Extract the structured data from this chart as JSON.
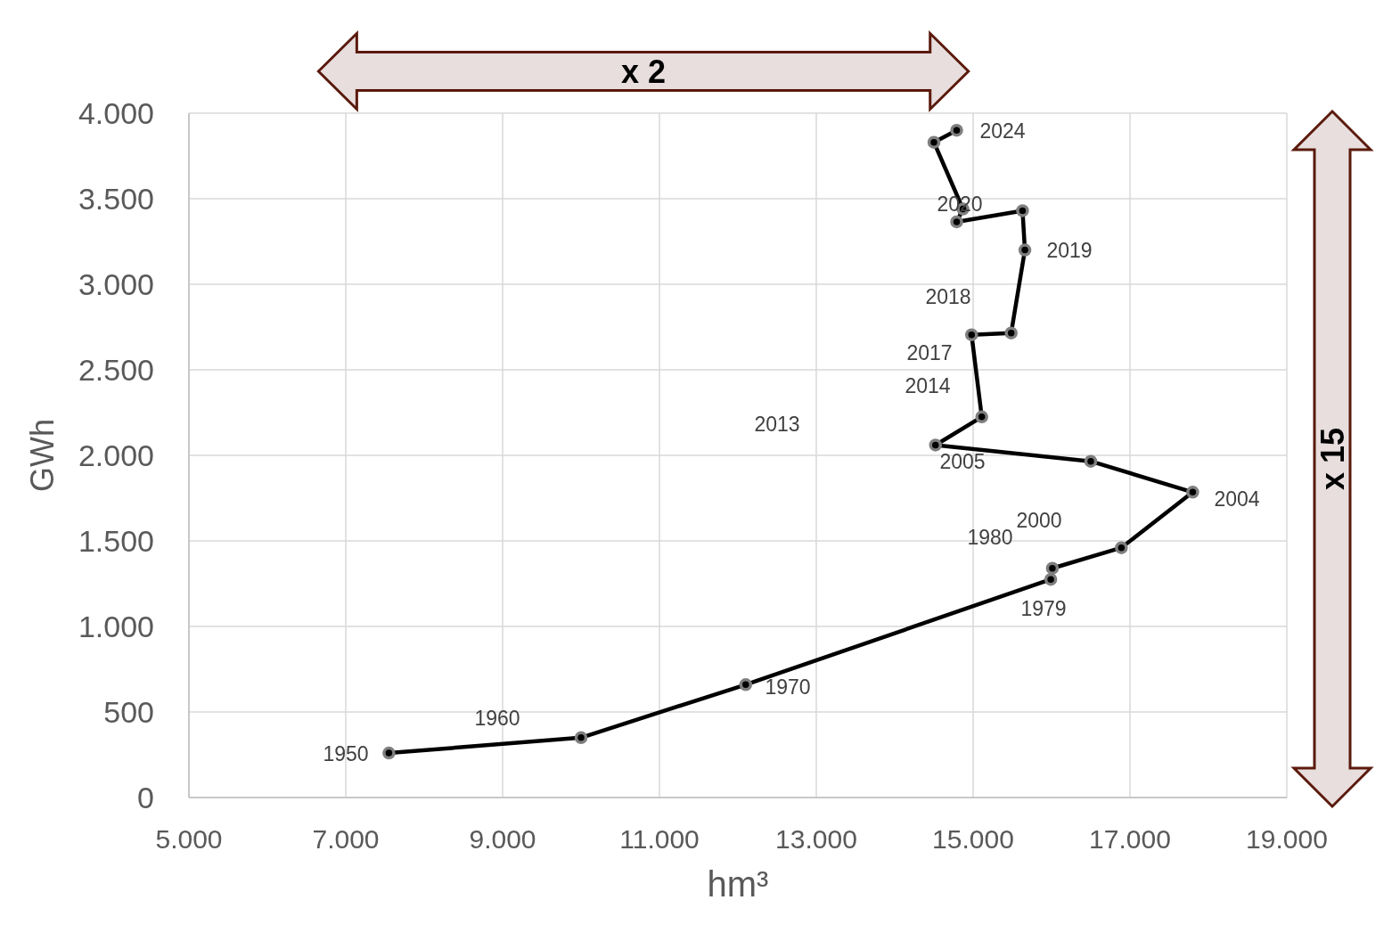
{
  "chart_data": {
    "type": "line",
    "xlabel": "hm³",
    "ylabel": "GWh",
    "x": [
      7550,
      10000,
      12100,
      15990,
      16010,
      16890,
      17800,
      16500,
      14520,
      15110,
      14980,
      15485,
      15660,
      15630,
      14790,
      14870,
      14500,
      14790
    ],
    "values": [
      260,
      350,
      660,
      1275,
      1340,
      1460,
      1785,
      1965,
      2060,
      2225,
      2705,
      2715,
      3200,
      3430,
      3365,
      3440,
      3830,
      3900
    ],
    "color": "#000000",
    "marker": "circle",
    "line_style": "solid",
    "grid": true,
    "xlim": [
      5000,
      19000
    ],
    "xticks": [
      {
        "value": 5000,
        "label": "5.000"
      },
      {
        "value": 7000,
        "label": "7.000"
      },
      {
        "value": 9000,
        "label": "9.000"
      },
      {
        "value": 11000,
        "label": "11.000"
      },
      {
        "value": 13000,
        "label": "13.000"
      },
      {
        "value": 15000,
        "label": "15.000"
      },
      {
        "value": 17000,
        "label": "17.000"
      },
      {
        "value": 19000,
        "label": "19.000"
      }
    ],
    "ylim": [
      0,
      4000
    ],
    "yticks": [
      0,
      500,
      {
        "value": 1000,
        "label": "1.000"
      },
      {
        "value": 1500,
        "label": "1.500"
      },
      {
        "value": 2000,
        "label": "2.000"
      },
      {
        "value": 2500,
        "label": "2.500"
      },
      {
        "value": 3000,
        "label": "3.000"
      },
      {
        "value": 3500,
        "label": "3.500"
      },
      {
        "value": 4000,
        "label": "4.000"
      }
    ],
    "annotations": [
      "x 2",
      "x 15",
      "1950",
      "1960",
      "1970",
      "1979",
      "1980",
      "2000",
      "2004",
      "2005",
      "2013",
      "2014",
      "2017",
      "2018",
      "2019",
      "2020",
      "2024"
    ]
  }
}
